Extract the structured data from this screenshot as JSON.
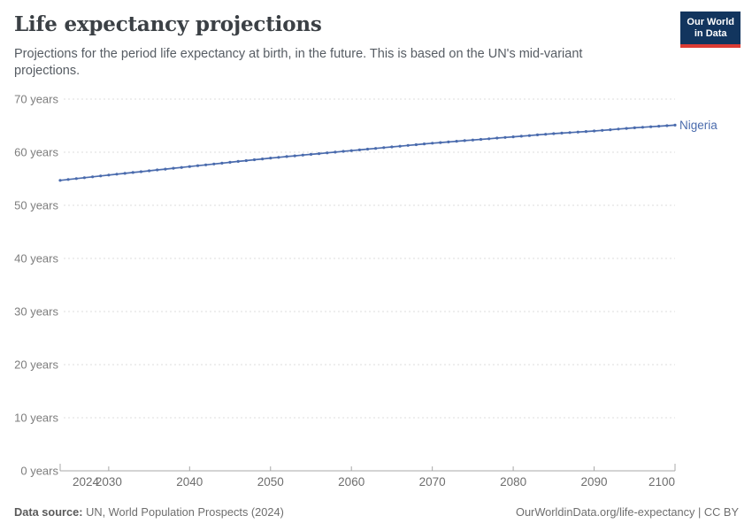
{
  "header": {
    "title": "Life expectancy projections",
    "subtitle": "Projections for the period life expectancy at birth, in the future. This is based on the UN's mid-variant projections.",
    "logo": {
      "line1": "Our World",
      "line2": "in Data"
    }
  },
  "chart_data": {
    "type": "line",
    "title": "Life expectancy projections",
    "xlabel": "",
    "ylabel": "",
    "xlim": [
      2024,
      2100
    ],
    "ylim": [
      0,
      70
    ],
    "x_ticks": [
      2024,
      2030,
      2040,
      2050,
      2060,
      2070,
      2080,
      2090,
      2100
    ],
    "y_ticks": [
      0,
      10,
      20,
      30,
      40,
      50,
      60,
      70
    ],
    "y_tick_suffix": " years",
    "grid": "dashed-horizontal",
    "legend_position": "line-end-label",
    "series": [
      {
        "name": "Nigeria",
        "color": "#4a6bad",
        "marker": "dot",
        "x": [
          2024,
          2025,
          2026,
          2027,
          2028,
          2029,
          2030,
          2031,
          2032,
          2033,
          2034,
          2035,
          2036,
          2037,
          2038,
          2039,
          2040,
          2041,
          2042,
          2043,
          2044,
          2045,
          2046,
          2047,
          2048,
          2049,
          2050,
          2051,
          2052,
          2053,
          2054,
          2055,
          2056,
          2057,
          2058,
          2059,
          2060,
          2061,
          2062,
          2063,
          2064,
          2065,
          2066,
          2067,
          2068,
          2069,
          2070,
          2071,
          2072,
          2073,
          2074,
          2075,
          2076,
          2077,
          2078,
          2079,
          2080,
          2081,
          2082,
          2083,
          2084,
          2085,
          2086,
          2087,
          2088,
          2089,
          2090,
          2091,
          2092,
          2093,
          2094,
          2095,
          2096,
          2097,
          2098,
          2099,
          2100
        ],
        "values": [
          54.7,
          54.87,
          55.03,
          55.2,
          55.37,
          55.53,
          55.7,
          55.86,
          56.02,
          56.18,
          56.34,
          56.5,
          56.66,
          56.82,
          56.98,
          57.14,
          57.3,
          57.46,
          57.62,
          57.78,
          57.94,
          58.1,
          58.26,
          58.42,
          58.58,
          58.74,
          58.9,
          59.04,
          59.18,
          59.32,
          59.46,
          59.6,
          59.74,
          59.88,
          60.02,
          60.16,
          60.3,
          60.44,
          60.58,
          60.72,
          60.86,
          61.0,
          61.14,
          61.28,
          61.42,
          61.56,
          61.7,
          61.82,
          61.94,
          62.06,
          62.18,
          62.3,
          62.42,
          62.54,
          62.66,
          62.78,
          62.9,
          63.02,
          63.14,
          63.26,
          63.38,
          63.5,
          63.6,
          63.7,
          63.8,
          63.9,
          64.0,
          64.12,
          64.24,
          64.36,
          64.48,
          64.6,
          64.7,
          64.8,
          64.9,
          65.0,
          65.1
        ]
      }
    ]
  },
  "footer": {
    "source_label": "Data source:",
    "source_text": " UN, World Population Prospects (2024)",
    "link_text": "OurWorldinData.org/life-expectancy | CC BY"
  },
  "colors": {
    "title": "#3b4045",
    "subtitle": "#565c63",
    "grid": "#dcdcdc",
    "axis": "#a8a8a8",
    "y_label": "#7d7d7d",
    "x_label": "#6e6e6e",
    "series_blue": "#4a6bad",
    "logo_bg": "#12355e",
    "logo_stripe": "#dc3c34"
  }
}
